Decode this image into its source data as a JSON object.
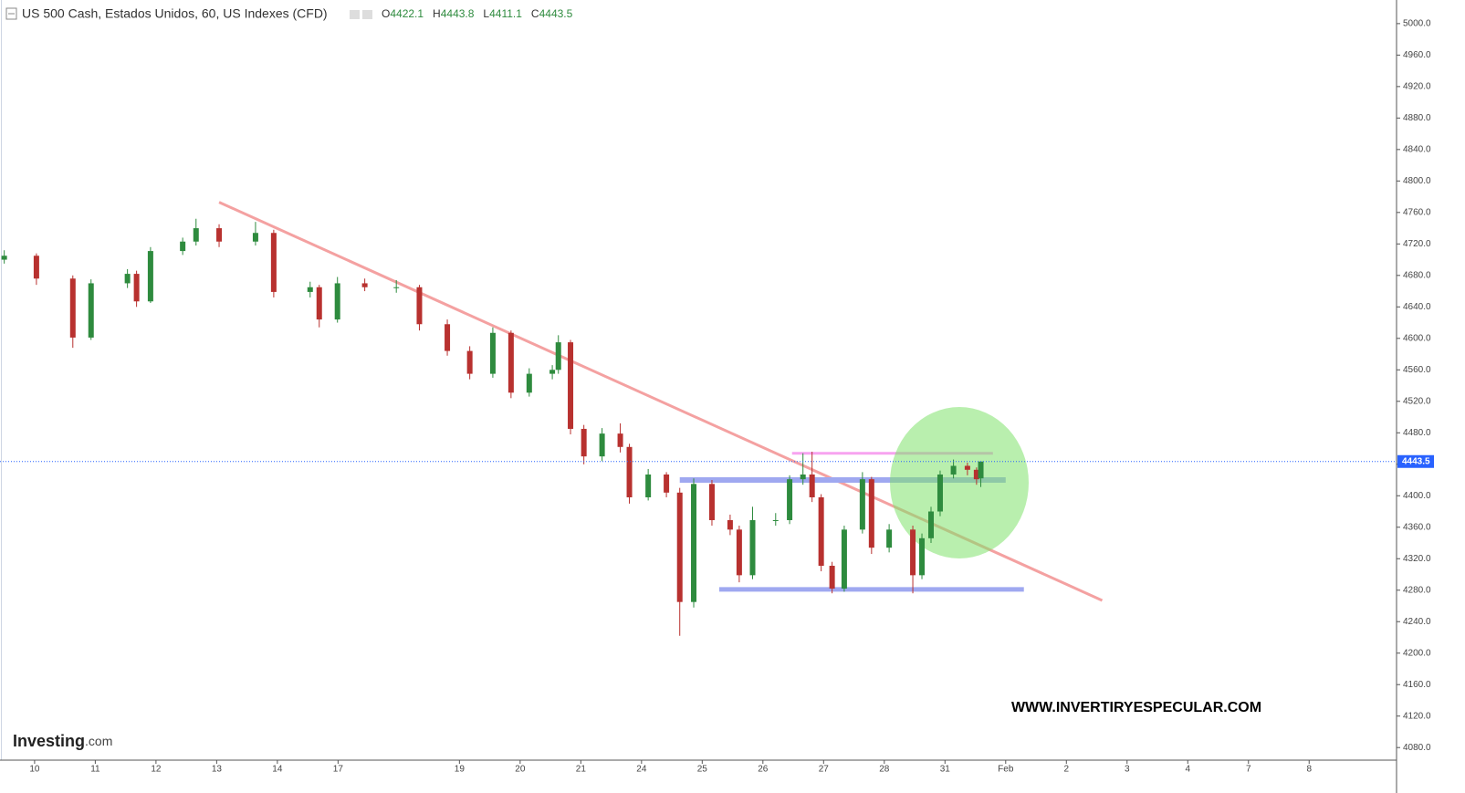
{
  "chart_data": {
    "type": "candlestick",
    "title": "US 500 Cash, Estados Unidos, 60, US Indexes (CFD)",
    "ohlc_header": [
      {
        "label": "O",
        "value": 4422.1
      },
      {
        "label": "H",
        "value": 4443.8
      },
      {
        "label": "L",
        "value": 4411.1
      },
      {
        "label": "C",
        "value": 4443.5
      }
    ],
    "x": [
      -0.5,
      0.03,
      0.63,
      0.93,
      1.53,
      1.68,
      1.91,
      2.44,
      2.66,
      3.04,
      3.64,
      3.94,
      4.54,
      4.69,
      4.99,
      5.44,
      5.96,
      6.34,
      6.8,
      7.17,
      7.55,
      7.85,
      8.15,
      8.53,
      8.63,
      8.83,
      9.05,
      9.35,
      9.65,
      9.8,
      10.11,
      10.41,
      10.63,
      10.86,
      11.16,
      11.46,
      11.61,
      11.83,
      12.21,
      12.44,
      12.66,
      12.81,
      12.96,
      13.14,
      13.34,
      13.64,
      13.79,
      14.08,
      14.47,
      14.62,
      14.77,
      14.92,
      15.14,
      15.37,
      15.52,
      15.59
    ],
    "open": [
      4700,
      4705,
      4676,
      4601,
      4670,
      4682,
      4647,
      4711,
      4723,
      4740,
      4723,
      4734,
      4659,
      4665,
      4624,
      4670,
      4665,
      4665,
      4618,
      4584,
      4555,
      4607,
      4531,
      4555,
      4560,
      4595,
      4485,
      4450,
      4479,
      4462,
      4398,
      4427,
      4404,
      4265,
      4415,
      4369,
      4357,
      4299,
      4369,
      4369,
      4421,
      4427,
      4398,
      4311,
      4282,
      4357,
      4421,
      4334,
      4357,
      4299,
      4346,
      4380,
      4427,
      4438,
      4433,
      4422.1
    ],
    "high": [
      4712,
      4708,
      4680,
      4675,
      4688,
      4686,
      4716,
      4728,
      4752,
      4745,
      4748,
      4738,
      4672,
      4668,
      4678,
      4676,
      4674,
      4668,
      4624,
      4590,
      4614,
      4610,
      4562,
      4566,
      4604,
      4598,
      4490,
      4486,
      4492,
      4466,
      4434,
      4430,
      4410,
      4422,
      4420,
      4376,
      4362,
      4386,
      4378,
      4426,
      4454,
      4456,
      4402,
      4316,
      4362,
      4430,
      4424,
      4364,
      4362,
      4352,
      4386,
      4432,
      4446,
      4442,
      4436,
      4443.8
    ],
    "low": [
      4695,
      4668,
      4588,
      4598,
      4664,
      4640,
      4645,
      4706,
      4718,
      4716,
      4718,
      4652,
      4652,
      4614,
      4620,
      4660,
      4658,
      4610,
      4578,
      4548,
      4550,
      4524,
      4526,
      4548,
      4555,
      4478,
      4440,
      4444,
      4455,
      4390,
      4394,
      4398,
      4222,
      4258,
      4362,
      4350,
      4290,
      4294,
      4362,
      4364,
      4414,
      4392,
      4304,
      4276,
      4278,
      4352,
      4326,
      4328,
      4276,
      4294,
      4340,
      4374,
      4422,
      4426,
      4414,
      4411.1
    ],
    "close": [
      4705,
      4676,
      4601,
      4670,
      4682,
      4647,
      4711,
      4723,
      4740,
      4723,
      4734,
      4659,
      4665,
      4624,
      4670,
      4665,
      4665,
      4618,
      4584,
      4555,
      4607,
      4531,
      4555,
      4560,
      4595,
      4485,
      4450,
      4479,
      4462,
      4398,
      4427,
      4404,
      4265,
      4415,
      4369,
      4357,
      4299,
      4369,
      4369,
      4421,
      4427,
      4398,
      4311,
      4282,
      4357,
      4421,
      4334,
      4357,
      4299,
      4346,
      4380,
      4427,
      4438,
      4433,
      4421,
      4443.5
    ],
    "up_color": "#2e8b3e",
    "down_color": "#b8312f",
    "xlim": [
      -0.57,
      22.44
    ],
    "xticks": [
      {
        "value": 0,
        "label": "10"
      },
      {
        "value": 1,
        "label": "11"
      },
      {
        "value": 2,
        "label": "12"
      },
      {
        "value": 3,
        "label": "13"
      },
      {
        "value": 4,
        "label": "14"
      },
      {
        "value": 5,
        "label": "17"
      },
      {
        "value": 7,
        "label": "19"
      },
      {
        "value": 8,
        "label": "20"
      },
      {
        "value": 9,
        "label": "21"
      },
      {
        "value": 10,
        "label": "24"
      },
      {
        "value": 11,
        "label": "25"
      },
      {
        "value": 12,
        "label": "26"
      },
      {
        "value": 13,
        "label": "27"
      },
      {
        "value": 14,
        "label": "28"
      },
      {
        "value": 15,
        "label": "31"
      },
      {
        "value": 16,
        "label": "Feb"
      },
      {
        "value": 17,
        "label": "2"
      },
      {
        "value": 18,
        "label": "3"
      },
      {
        "value": 19,
        "label": "4"
      },
      {
        "value": 20,
        "label": "7"
      },
      {
        "value": 21,
        "label": "8"
      }
    ],
    "ylim": [
      4064,
      5030
    ],
    "yticks": [
      {
        "value": 4080,
        "label": "4080.0"
      },
      {
        "value": 4120,
        "label": "4120.0"
      },
      {
        "value": 4160,
        "label": "4160.0"
      },
      {
        "value": 4200,
        "label": "4200.0"
      },
      {
        "value": 4240,
        "label": "4240.0"
      },
      {
        "value": 4280,
        "label": "4280.0"
      },
      {
        "value": 4320,
        "label": "4320.0"
      },
      {
        "value": 4360,
        "label": "4360.0"
      },
      {
        "value": 4400,
        "label": "4400.0"
      },
      {
        "value": 4440,
        "label": "4440.0"
      },
      {
        "value": 4480,
        "label": "4480.0"
      },
      {
        "value": 4520,
        "label": "4520.0"
      },
      {
        "value": 4560,
        "label": "4560.0"
      },
      {
        "value": 4600,
        "label": "4600.0"
      },
      {
        "value": 4640,
        "label": "4640.0"
      },
      {
        "value": 4680,
        "label": "4680.0"
      },
      {
        "value": 4720,
        "label": "4720.0"
      },
      {
        "value": 4760,
        "label": "4760.0"
      },
      {
        "value": 4800,
        "label": "4800.0"
      },
      {
        "value": 4840,
        "label": "4840.0"
      },
      {
        "value": 4880,
        "label": "4880.0"
      },
      {
        "value": 4920,
        "label": "4920.0"
      },
      {
        "value": 4960,
        "label": "4960.0"
      },
      {
        "value": 5000,
        "label": "5000.0"
      }
    ],
    "last_price": 4443.5,
    "last_price_color": "#2962ff",
    "drawings": [
      {
        "x": [
          3.04,
          17.59
        ],
        "y": [
          4773,
          4267
        ],
        "color": "#f4a1a1",
        "width": 3
      },
      {
        "x": [
          10.63,
          16.0
        ],
        "y": [
          4420,
          4420
        ],
        "color": "#9fa8f0",
        "width": 6
      },
      {
        "x": [
          11.28,
          16.3
        ],
        "y": [
          4281,
          4281
        ],
        "color": "#9fa8f0",
        "width": 5
      },
      {
        "x": [
          12.48,
          15.79
        ],
        "y": [
          4454,
          4454
        ],
        "color": "#f7a3f0",
        "width": 3
      }
    ],
    "watermark": "WWW.INVERTIRYESPECULAR.COM",
    "logo": "Investing",
    "logo_suffix": ".com"
  }
}
